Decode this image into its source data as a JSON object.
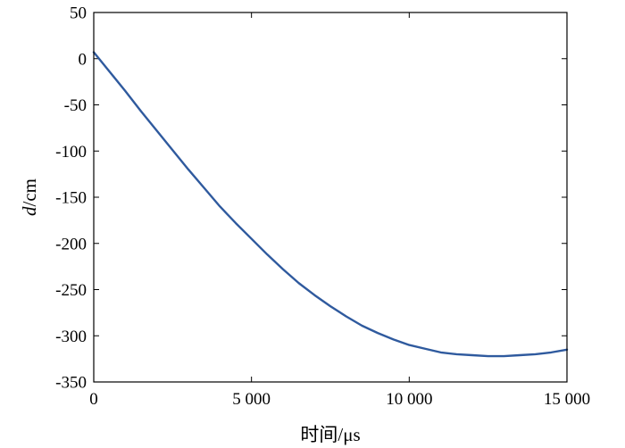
{
  "chart_data": {
    "type": "line",
    "title": "",
    "xlabel": "时间/μs",
    "ylabel_italic": "d",
    "ylabel_rest": "/cm",
    "xlim": [
      0,
      15000
    ],
    "ylim": [
      -350,
      50
    ],
    "grid": false,
    "legend": "none",
    "x_ticks": [
      {
        "value": 0,
        "label": "0"
      },
      {
        "value": 5000,
        "label": "5 000"
      },
      {
        "value": 10000,
        "label": "10 000"
      },
      {
        "value": 15000,
        "label": "15 000"
      }
    ],
    "y_ticks": [
      {
        "value": 50,
        "label": "50"
      },
      {
        "value": 0,
        "label": "0"
      },
      {
        "value": -50,
        "label": "-50"
      },
      {
        "value": -100,
        "label": "-100"
      },
      {
        "value": -150,
        "label": "-150"
      },
      {
        "value": -200,
        "label": "-200"
      },
      {
        "value": -250,
        "label": "-250"
      },
      {
        "value": -300,
        "label": "-300"
      },
      {
        "value": -350,
        "label": "-350"
      }
    ],
    "series": [
      {
        "color": "#2f5a9e",
        "x": [
          0,
          500,
          1000,
          1500,
          2000,
          2500,
          3000,
          3500,
          4000,
          4500,
          5000,
          5500,
          6000,
          6500,
          7000,
          7500,
          8000,
          8500,
          9000,
          9500,
          10000,
          10500,
          11000,
          11500,
          12000,
          12500,
          13000,
          13500,
          14000,
          14500,
          15000
        ],
        "y": [
          7,
          -14,
          -35,
          -57,
          -78,
          -99,
          -120,
          -140,
          -160,
          -178,
          -195,
          -212,
          -228,
          -243,
          -256,
          -268,
          -279,
          -289,
          -297,
          -304,
          -310,
          -314,
          -318,
          -320,
          -321,
          -322,
          -322,
          -321,
          -320,
          -318,
          -315
        ]
      }
    ]
  }
}
